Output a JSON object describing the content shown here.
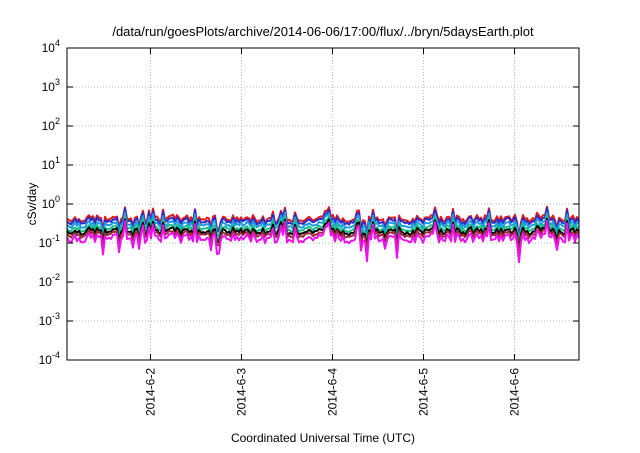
{
  "chart_data": {
    "type": "line",
    "title": "/data/run/goesPlots/archive/2014-06-06/17:00/flux/../bryn/5daysEarth.plot",
    "xlabel": "Coordinated Universal Time (UTC)",
    "ylabel": "cSv/day",
    "yscale": "log",
    "ylim": [
      0.0001,
      10000
    ],
    "xlim": [
      "2014-06-01T02:00",
      "2014-06-06T17:00"
    ],
    "grid": true,
    "legend": "none",
    "y_ticks": [
      {
        "value": 0.0001,
        "base": "10",
        "exp": "-4"
      },
      {
        "value": 0.001,
        "base": "10",
        "exp": "-3"
      },
      {
        "value": 0.01,
        "base": "10",
        "exp": "-2"
      },
      {
        "value": 0.1,
        "base": "10",
        "exp": "-1"
      },
      {
        "value": 1,
        "base": "10",
        "exp": "0"
      },
      {
        "value": 10,
        "base": "10",
        "exp": "1"
      },
      {
        "value": 100,
        "base": "10",
        "exp": "2"
      },
      {
        "value": 1000,
        "base": "10",
        "exp": "3"
      },
      {
        "value": 10000,
        "base": "10",
        "exp": "4"
      }
    ],
    "x_ticks": [
      {
        "value": "2014-06-02",
        "label": "2014-6-2"
      },
      {
        "value": "2014-06-03",
        "label": "2014-6-3"
      },
      {
        "value": "2014-06-04",
        "label": "2014-6-4"
      },
      {
        "value": "2014-06-05",
        "label": "2014-6-5"
      },
      {
        "value": "2014-06-06",
        "label": "2014-6-6"
      }
    ],
    "series": [
      {
        "color": "#e41a1c",
        "typical": 0.42
      },
      {
        "color": "#2c2cc8",
        "typical": 0.37
      },
      {
        "color": "#1e9be0",
        "typical": 0.3
      },
      {
        "color": "#17c08a",
        "typical": 0.24
      },
      {
        "color": "#000000",
        "typical": 0.2
      },
      {
        "color": "#9b2a3a",
        "typical": 0.17
      },
      {
        "color": "#ee11ee",
        "typical": 0.135
      }
    ]
  }
}
